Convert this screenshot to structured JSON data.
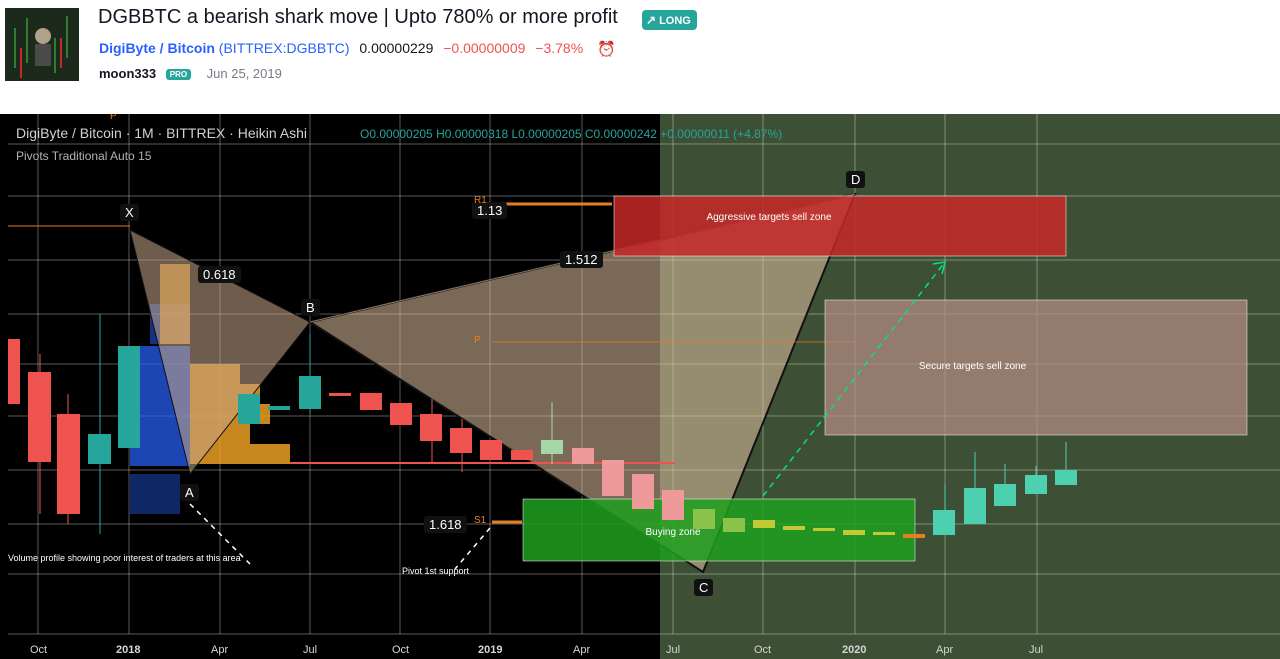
{
  "idea": {
    "title": "DGBBTC a bearish shark move | Upto 780% or more profit",
    "badge": "LONG",
    "symbol_name": "DigiByte / Bitcoin",
    "symbol_code": "(BITTREX:DGBBTC)",
    "price": "0.00000229",
    "change": "−0.00000009",
    "change_pct": "−3.78%",
    "author": "moon333",
    "pro_label": "PRO",
    "date": "Jun 25, 2019"
  },
  "chart": {
    "legend_title": "DigiByte / Bitcoin · 1M · BITTREX · Heikin Ashi",
    "ohlc": "O0.00000205 H0.00000318 L0.00000205 C0.00000242 +0.00000011 (+4.87%)",
    "indicator": "Pivots Traditional Auto 15",
    "points": {
      "x": "X",
      "a": "A",
      "b": "B",
      "c": "C",
      "d": "D"
    },
    "ratios": {
      "r0618": "0.618",
      "r113": "1.13",
      "r1512": "1.512",
      "r1618": "1.618"
    },
    "pivots": {
      "r1": "R1",
      "p": "P",
      "s1": "S1",
      "p_top": "P"
    },
    "zones": {
      "aggressive": "Aggressive targets sell zone",
      "secure": "Secure targets sell zone",
      "buying": "Buying zone"
    },
    "notes": {
      "volume": "Volume profile showing poor interest of traders at this area",
      "pivot": "Pivot 1st support"
    },
    "x_axis": [
      "Oct",
      "2018",
      "Apr",
      "Jul",
      "Oct",
      "2019",
      "Apr",
      "Jul",
      "Oct",
      "2020",
      "Apr",
      "Jul"
    ],
    "colors": {
      "up": "#26a69a",
      "down": "#ef5350",
      "bg_dark": "#000000",
      "bg_green": "#3d4f34"
    }
  }
}
